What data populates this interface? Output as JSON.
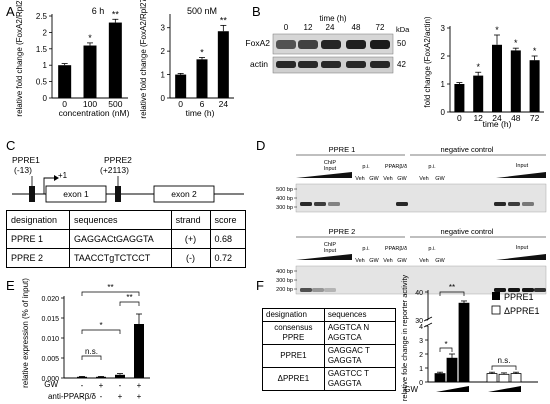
{
  "panels": {
    "a": "A",
    "b": "B",
    "c": "C",
    "d": "D",
    "e": "E",
    "f": "F"
  },
  "chart_data": [
    {
      "panel": "A-left",
      "type": "bar",
      "title": "6 h",
      "categories": [
        "0",
        "100",
        "500"
      ],
      "values": [
        1.0,
        1.6,
        2.3
      ],
      "errors": [
        0.05,
        0.08,
        0.1
      ],
      "significance": [
        "",
        "*",
        "**"
      ],
      "xlabel": "concentration (nM)",
      "ylabel": "relative fold change (FoxA2/Rpl27)",
      "ylim": [
        0,
        2.5
      ],
      "yticks": [
        "0",
        "0.5",
        "1",
        "1.5",
        "2",
        "2.5"
      ]
    },
    {
      "panel": "A-right",
      "type": "bar",
      "title": "500 nM",
      "categories": [
        "0",
        "6",
        "24"
      ],
      "values": [
        1.0,
        1.65,
        2.85
      ],
      "errors": [
        0.05,
        0.08,
        0.25
      ],
      "significance": [
        "",
        "*",
        "**"
      ],
      "xlabel": "time (h)",
      "ylabel": "relative fold change (FoxA2/Rpl27)",
      "ylim": [
        0,
        3.5
      ],
      "yticks": [
        "0",
        "1",
        "2",
        "3"
      ]
    },
    {
      "panel": "B",
      "type": "bar",
      "categories": [
        "0",
        "12",
        "24",
        "48",
        "72"
      ],
      "values": [
        1.0,
        1.3,
        2.4,
        2.2,
        1.85
      ],
      "errors": [
        0.05,
        0.12,
        0.35,
        0.08,
        0.15
      ],
      "significance": [
        "",
        "*",
        "*",
        "*",
        "*"
      ],
      "xlabel": "time (h)",
      "ylabel": "fold change (FoxA2/actin)",
      "ylim": [
        0,
        3
      ],
      "yticks": [
        "0",
        "1",
        "2",
        "3"
      ]
    },
    {
      "panel": "E",
      "type": "bar",
      "categories": [
        "1",
        "2",
        "3",
        "4"
      ],
      "values": [
        0.0003,
        0.0003,
        0.0008,
        0.0135
      ],
      "errors": [
        0.0001,
        0.0001,
        0.0003,
        0.0025
      ],
      "ylabel": "relative expression (% of input)",
      "ylim": [
        0,
        0.02
      ],
      "yticks": [
        "0.000",
        "0.005",
        "0.010",
        "0.015",
        "0.020"
      ],
      "row_labels": [
        "GW",
        "anti-PPARβ/δ"
      ],
      "gw": [
        "-",
        "+",
        "-",
        "+"
      ],
      "anti": [
        "-",
        "-",
        "+",
        "+"
      ],
      "significance": [
        {
          "pair": [
            1,
            2
          ],
          "label": "n.s."
        },
        {
          "pair": [
            1,
            3
          ],
          "label": "*"
        },
        {
          "pair": [
            1,
            4
          ],
          "label": "**"
        },
        {
          "pair": [
            3,
            4
          ],
          "label": "**"
        }
      ]
    },
    {
      "panel": "F",
      "type": "bar",
      "ylabel": "relative fole change in reporter activity",
      "yticks_low": [
        "0",
        "1",
        "2",
        "3",
        "4"
      ],
      "yticks_high": [
        "30",
        "40"
      ],
      "row_label": "GW",
      "series": [
        {
          "name": "PPRE1",
          "values": [
            0.6,
            1.7,
            36.0
          ],
          "errors": [
            0.1,
            0.3,
            0.8
          ]
        },
        {
          "name": "ΔPPRE1",
          "values": [
            0.6,
            0.55,
            0.6
          ],
          "errors": [
            0.1,
            0.1,
            0.1
          ]
        }
      ],
      "significance": [
        {
          "label": "*"
        },
        {
          "label": "**"
        },
        {
          "label": "n.s."
        }
      ]
    }
  ],
  "blotB": {
    "time_label": "time (h)",
    "times": [
      "0",
      "12",
      "24",
      "48",
      "72"
    ],
    "kda": "kDa",
    "rows": [
      {
        "label": "FoxA2",
        "marker": "50"
      },
      {
        "label": "actin",
        "marker": "42"
      }
    ],
    "intensities": [
      0.35,
      0.5,
      0.75,
      0.8,
      0.85
    ]
  },
  "panelC": {
    "ppre1": "PPRE1",
    "ppre1_pos": "(-13)",
    "ppre2": "PPRE2",
    "ppre2_pos": "(+2113)",
    "tss": "+1",
    "exon1": "exon 1",
    "exon2": "exon 2",
    "table": {
      "headers": [
        "designation",
        "sequences",
        "strand",
        "score"
      ],
      "rows": [
        [
          "PPRE 1",
          "GAGGACtGAGGTA",
          "(+)",
          "0.68"
        ],
        [
          "PPRE 2",
          "TAACCTgTCTCCT",
          "(-)",
          "0.72"
        ]
      ]
    }
  },
  "panelD": {
    "blocks": [
      {
        "ppre": "PPRE 1",
        "negative": "negative control",
        "markers": [
          "500 bp",
          "400 bp",
          "300 bp"
        ]
      },
      {
        "ppre": "PPRE 2",
        "negative": "negative control",
        "markers": [
          "400 bp",
          "300 bp",
          "200 bp"
        ]
      }
    ],
    "chip": "ChIP",
    "input": "Input",
    "pi": "p.i.",
    "ppar": "PPARβ/δ",
    "veh": "Veh",
    "gw": "GW"
  },
  "panelF": {
    "table": {
      "headers": [
        "designation",
        "sequences"
      ],
      "rows": [
        [
          "consensus PPRE",
          "AGGTCA N AGGTCA"
        ],
        [
          "PPRE1",
          "GAGGAC T GAGGTA"
        ],
        [
          "ΔPPRE1",
          "GAGTCC T GAGGTA"
        ]
      ]
    }
  }
}
